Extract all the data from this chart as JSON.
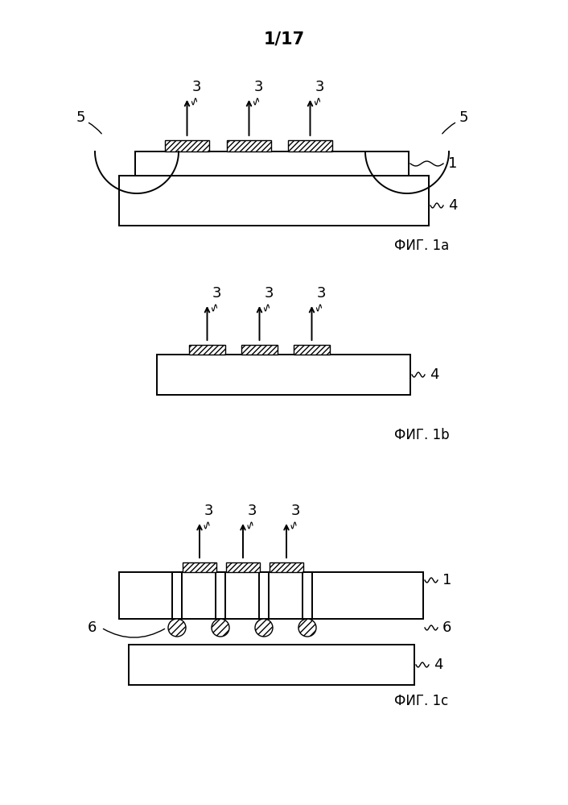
{
  "title": "1/17",
  "bg_color": "#ffffff",
  "line_color": "#000000",
  "fig1a_label": "ФИГ. 1a",
  "fig1b_label": "ФИГ. 1b",
  "fig1c_label": "ФИГ. 1c",
  "label_fontsize": 12,
  "number_fontsize": 13,
  "title_fontsize": 15
}
